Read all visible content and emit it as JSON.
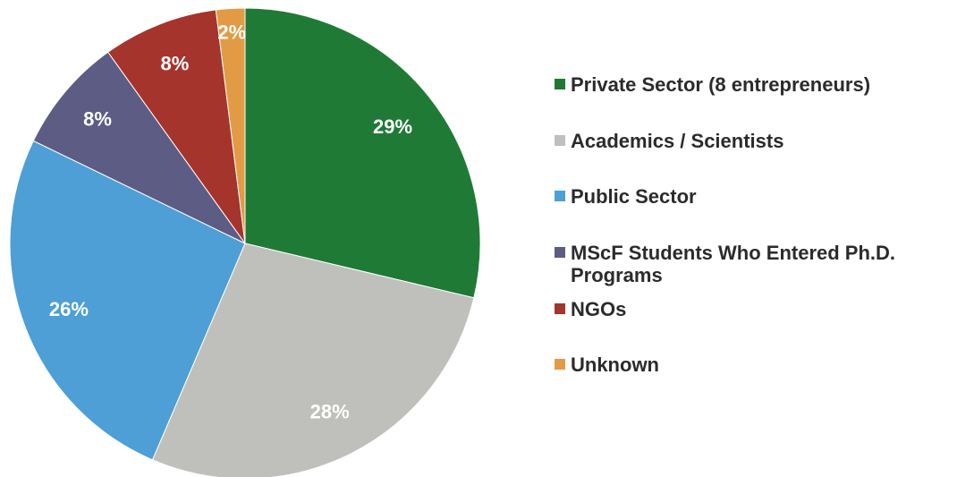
{
  "chart_data": {
    "type": "pie",
    "title": "",
    "slices": [
      {
        "label": "Private Sector (8 entrepreneurs)",
        "value": 29,
        "value_label": "29%",
        "color": "#1f7a35"
      },
      {
        "label": "Academics / Scientists",
        "value": 28,
        "value_label": "28%",
        "color": "#bfbfbb"
      },
      {
        "label": "Public Sector",
        "value": 26,
        "value_label": "26%",
        "color": "#4d9fd6"
      },
      {
        "label": "MScF Students Who Entered Ph.D. Programs",
        "value": 8,
        "value_label": "8%",
        "color": "#5c5c84"
      },
      {
        "label": "NGOs",
        "value": 8,
        "value_label": "8%",
        "color": "#a5342c"
      },
      {
        "label": "Unknown",
        "value": 2,
        "value_label": "2%",
        "color": "#e39a45"
      }
    ],
    "legend_position": "right",
    "start_angle": "12 o'clock",
    "direction": "clockwise"
  }
}
